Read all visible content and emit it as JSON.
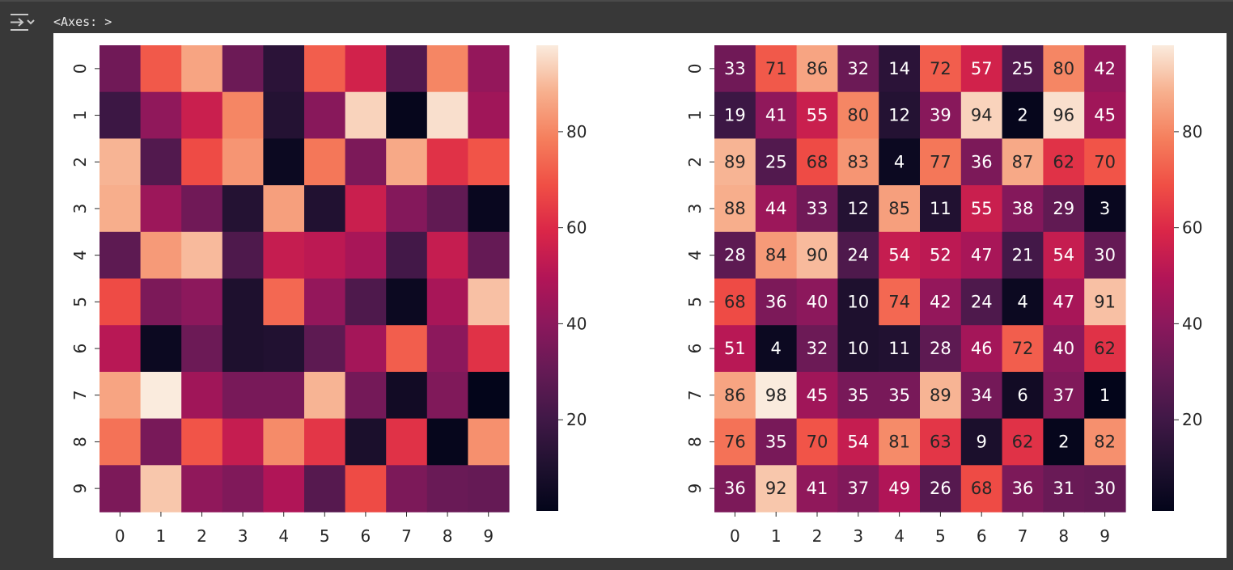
{
  "output": {
    "label": "<Axes: >",
    "icon": "output-expand-icon"
  },
  "colors": {
    "page_background": "#383838",
    "figure_background": "#ffffff",
    "colormap": "rocket"
  },
  "chart_data": [
    {
      "type": "heatmap",
      "annot": false,
      "x_ticks": [
        "0",
        "1",
        "2",
        "3",
        "4",
        "5",
        "6",
        "7",
        "8",
        "9"
      ],
      "y_ticks": [
        "0",
        "1",
        "2",
        "3",
        "4",
        "5",
        "6",
        "7",
        "8",
        "9"
      ],
      "values": [
        [
          33,
          71,
          86,
          32,
          14,
          72,
          57,
          25,
          80,
          42
        ],
        [
          19,
          41,
          55,
          80,
          12,
          39,
          94,
          2,
          96,
          45
        ],
        [
          89,
          25,
          68,
          83,
          4,
          77,
          36,
          87,
          62,
          70
        ],
        [
          88,
          44,
          33,
          12,
          85,
          11,
          55,
          38,
          29,
          3
        ],
        [
          28,
          84,
          90,
          24,
          54,
          52,
          47,
          21,
          54,
          30
        ],
        [
          68,
          36,
          40,
          10,
          74,
          42,
          24,
          4,
          47,
          91
        ],
        [
          51,
          4,
          32,
          10,
          11,
          28,
          46,
          72,
          40,
          62
        ],
        [
          86,
          98,
          45,
          35,
          35,
          89,
          34,
          6,
          37,
          1
        ],
        [
          76,
          35,
          70,
          54,
          81,
          63,
          9,
          62,
          2,
          82
        ],
        [
          36,
          92,
          41,
          37,
          49,
          26,
          68,
          36,
          31,
          30
        ]
      ],
      "colorbar": {
        "vmin": 1,
        "vmax": 98,
        "ticks": [
          "20",
          "40",
          "60",
          "80"
        ]
      }
    },
    {
      "type": "heatmap",
      "annot": true,
      "x_ticks": [
        "0",
        "1",
        "2",
        "3",
        "4",
        "5",
        "6",
        "7",
        "8",
        "9"
      ],
      "y_ticks": [
        "0",
        "1",
        "2",
        "3",
        "4",
        "5",
        "6",
        "7",
        "8",
        "9"
      ],
      "values": [
        [
          33,
          71,
          86,
          32,
          14,
          72,
          57,
          25,
          80,
          42
        ],
        [
          19,
          41,
          55,
          80,
          12,
          39,
          94,
          2,
          96,
          45
        ],
        [
          89,
          25,
          68,
          83,
          4,
          77,
          36,
          87,
          62,
          70
        ],
        [
          88,
          44,
          33,
          12,
          85,
          11,
          55,
          38,
          29,
          3
        ],
        [
          28,
          84,
          90,
          24,
          54,
          52,
          47,
          21,
          54,
          30
        ],
        [
          68,
          36,
          40,
          10,
          74,
          42,
          24,
          4,
          47,
          91
        ],
        [
          51,
          4,
          32,
          10,
          11,
          28,
          46,
          72,
          40,
          62
        ],
        [
          86,
          98,
          45,
          35,
          35,
          89,
          34,
          6,
          37,
          1
        ],
        [
          76,
          35,
          70,
          54,
          81,
          63,
          9,
          62,
          2,
          82
        ],
        [
          36,
          92,
          41,
          37,
          49,
          26,
          68,
          36,
          31,
          30
        ]
      ],
      "colorbar": {
        "vmin": 1,
        "vmax": 98,
        "ticks": [
          "20",
          "40",
          "60",
          "80"
        ]
      }
    }
  ]
}
